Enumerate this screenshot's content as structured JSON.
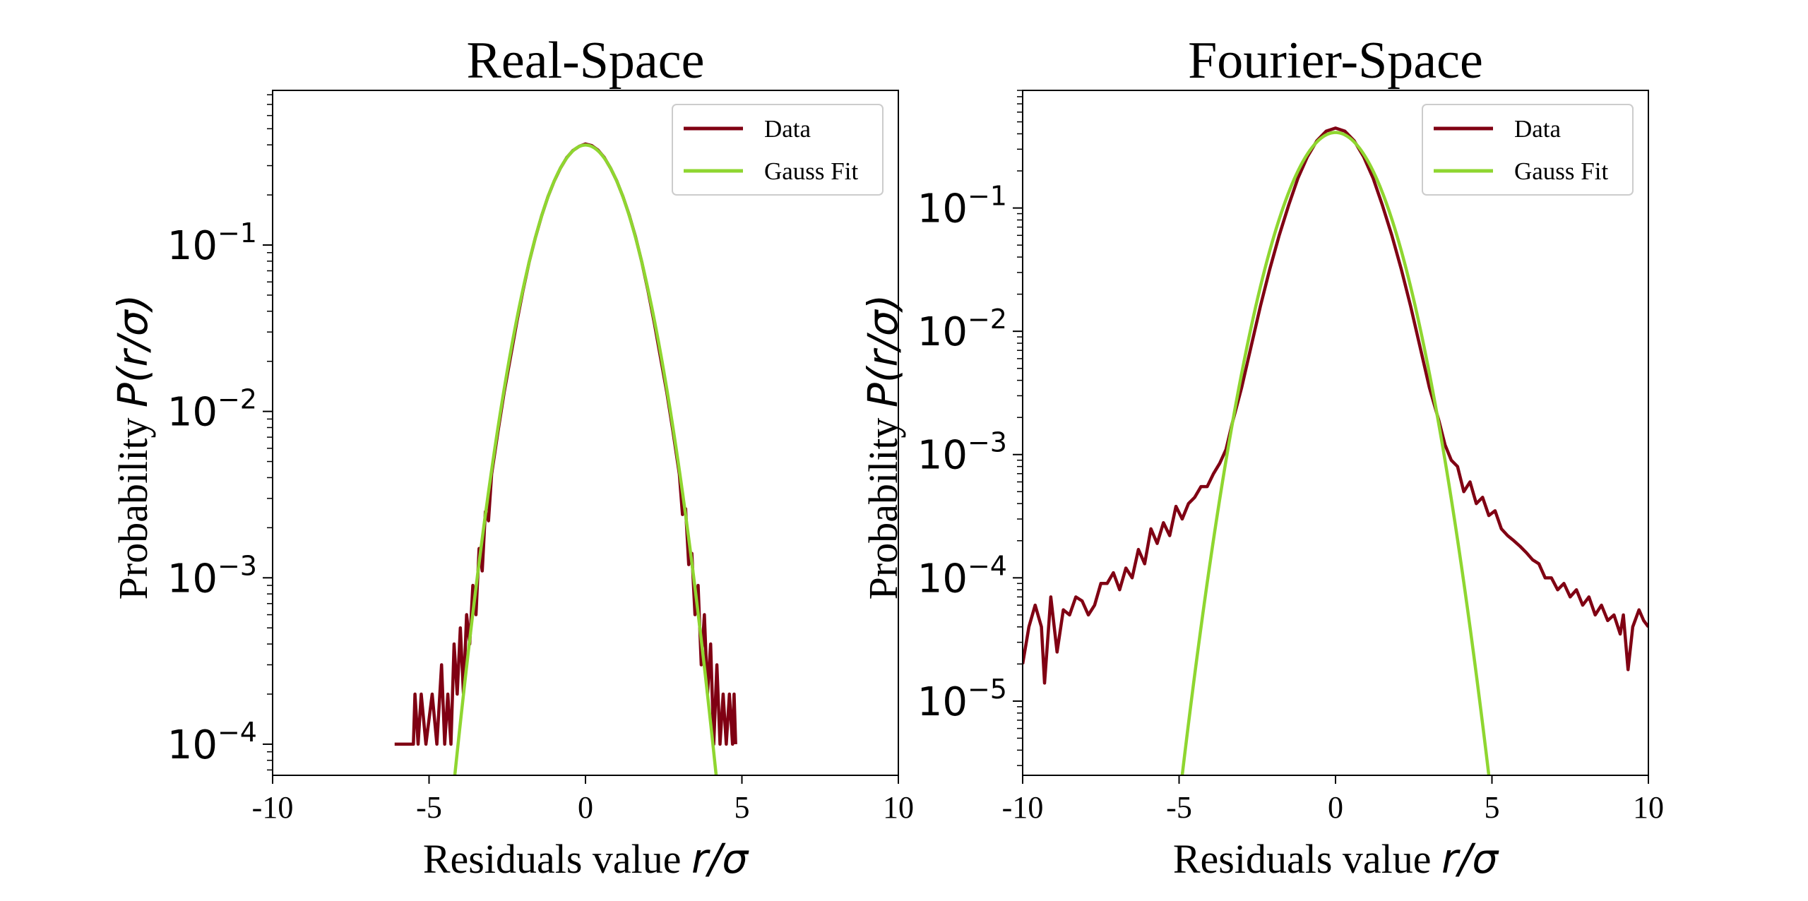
{
  "colors": {
    "data": "#800013",
    "fit": "#8fd630",
    "axes": "#000000",
    "legend_border": "#cccccc"
  },
  "chart_data": [
    {
      "type": "line",
      "title": "Real-Space",
      "xlabel_text": "Residuals value ",
      "xlabel_math": "r/σ",
      "ylabel_text": "Probability ",
      "ylabel_math": "P(r/σ)",
      "xlim": [
        -10,
        10
      ],
      "ylim": [
        6.5e-05,
        0.85
      ],
      "yscale": "log",
      "xticks": [
        -10,
        -5,
        0,
        5,
        10
      ],
      "xtick_labels": [
        "-10",
        "-5",
        "0",
        "5",
        "10"
      ],
      "yticks": [
        {
          "value": 0.1,
          "base": "10",
          "exp": "−1"
        },
        {
          "value": 0.01,
          "base": "10",
          "exp": "−2"
        },
        {
          "value": 0.001,
          "base": "10",
          "exp": "−3"
        },
        {
          "value": 0.0001,
          "base": "10",
          "exp": "−4"
        }
      ],
      "legend": {
        "position": "top-right",
        "entries": [
          "Data",
          "Gauss Fit"
        ]
      },
      "series": [
        {
          "name": "Data",
          "kind": "data",
          "points": [
            [
              -6.1,
              0.0001
            ],
            [
              -6.05,
              0.0001
            ],
            [
              -5.5,
              0.0001
            ],
            [
              -5.45,
              0.0002
            ],
            [
              -5.35,
              0.0001
            ],
            [
              -5.25,
              0.0002
            ],
            [
              -5.1,
              0.0001
            ],
            [
              -4.9,
              0.0002
            ],
            [
              -4.75,
              0.0001
            ],
            [
              -4.6,
              0.0003
            ],
            [
              -4.5,
              0.0001
            ],
            [
              -4.4,
              0.0002
            ],
            [
              -4.3,
              0.0001
            ],
            [
              -4.2,
              0.0004
            ],
            [
              -4.1,
              0.0002
            ],
            [
              -4.0,
              0.0005
            ],
            [
              -3.9,
              0.0002
            ],
            [
              -3.8,
              0.0006
            ],
            [
              -3.7,
              0.0004
            ],
            [
              -3.6,
              0.0009
            ],
            [
              -3.5,
              0.0006
            ],
            [
              -3.4,
              0.0015
            ],
            [
              -3.3,
              0.0011
            ],
            [
              -3.2,
              0.0025
            ],
            [
              -3.1,
              0.0022
            ],
            [
              -3.0,
              0.0042
            ],
            [
              -2.8,
              0.0075
            ],
            [
              -2.6,
              0.013
            ],
            [
              -2.4,
              0.021
            ],
            [
              -2.2,
              0.034
            ],
            [
              -2.0,
              0.053
            ],
            [
              -1.8,
              0.079
            ],
            [
              -1.6,
              0.111
            ],
            [
              -1.4,
              0.15
            ],
            [
              -1.2,
              0.195
            ],
            [
              -1.0,
              0.242
            ],
            [
              -0.8,
              0.29
            ],
            [
              -0.6,
              0.335
            ],
            [
              -0.4,
              0.37
            ],
            [
              -0.2,
              0.392
            ],
            [
              0.0,
              0.405
            ],
            [
              0.2,
              0.396
            ],
            [
              0.4,
              0.372
            ],
            [
              0.6,
              0.336
            ],
            [
              0.8,
              0.29
            ],
            [
              1.0,
              0.243
            ],
            [
              1.2,
              0.195
            ],
            [
              1.4,
              0.151
            ],
            [
              1.6,
              0.112
            ],
            [
              1.8,
              0.079
            ],
            [
              2.0,
              0.053
            ],
            [
              2.2,
              0.034
            ],
            [
              2.4,
              0.021
            ],
            [
              2.6,
              0.013
            ],
            [
              2.8,
              0.0075
            ],
            [
              3.0,
              0.0042
            ],
            [
              3.1,
              0.0024
            ],
            [
              3.2,
              0.0026
            ],
            [
              3.3,
              0.0012
            ],
            [
              3.4,
              0.0014
            ],
            [
              3.5,
              0.0006
            ],
            [
              3.6,
              0.0009
            ],
            [
              3.7,
              0.0003
            ],
            [
              3.8,
              0.0006
            ],
            [
              3.9,
              0.0002
            ],
            [
              4.0,
              0.0004
            ],
            [
              4.1,
              0.0001
            ],
            [
              4.2,
              0.0003
            ],
            [
              4.3,
              0.0001
            ],
            [
              4.4,
              0.0002
            ],
            [
              4.5,
              0.0001
            ],
            [
              4.6,
              0.0002
            ],
            [
              4.7,
              0.0001
            ],
            [
              4.75,
              0.0002
            ],
            [
              4.8,
              0.0001
            ]
          ]
        },
        {
          "name": "Gauss Fit",
          "kind": "fit",
          "amplitude": 0.399,
          "sigma": 1.0
        }
      ]
    },
    {
      "type": "line",
      "title": "Fourier-Space",
      "xlabel_text": "Residuals value ",
      "xlabel_math": "r/σ",
      "ylabel_text": "Probability ",
      "ylabel_math": "P(r/σ)",
      "xlim": [
        -10,
        10
      ],
      "ylim": [
        2.5e-06,
        0.9
      ],
      "yscale": "log",
      "xticks": [
        -10,
        -5,
        0,
        5,
        10
      ],
      "xtick_labels": [
        "-10",
        "-5",
        "0",
        "5",
        "10"
      ],
      "yticks": [
        {
          "value": 0.1,
          "base": "10",
          "exp": "−1"
        },
        {
          "value": 0.01,
          "base": "10",
          "exp": "−2"
        },
        {
          "value": 0.001,
          "base": "10",
          "exp": "−3"
        },
        {
          "value": 0.0001,
          "base": "10",
          "exp": "−4"
        },
        {
          "value": 1e-05,
          "base": "10",
          "exp": "−5"
        }
      ],
      "legend": {
        "position": "top-right",
        "entries": [
          "Data",
          "Gauss Fit"
        ]
      },
      "series": [
        {
          "name": "Data",
          "kind": "data",
          "points": [
            [
              -10.0,
              2e-05
            ],
            [
              -9.8,
              4e-05
            ],
            [
              -9.6,
              6e-05
            ],
            [
              -9.4,
              4e-05
            ],
            [
              -9.3,
              1.4e-05
            ],
            [
              -9.1,
              7e-05
            ],
            [
              -8.9,
              2.5e-05
            ],
            [
              -8.7,
              5.5e-05
            ],
            [
              -8.5,
              5e-05
            ],
            [
              -8.3,
              7e-05
            ],
            [
              -8.1,
              6.5e-05
            ],
            [
              -7.9,
              5e-05
            ],
            [
              -7.7,
              6e-05
            ],
            [
              -7.5,
              9e-05
            ],
            [
              -7.3,
              9e-05
            ],
            [
              -7.1,
              0.00011
            ],
            [
              -6.9,
              8e-05
            ],
            [
              -6.7,
              0.00012
            ],
            [
              -6.5,
              0.0001
            ],
            [
              -6.3,
              0.00017
            ],
            [
              -6.1,
              0.00013
            ],
            [
              -5.9,
              0.00025
            ],
            [
              -5.7,
              0.00019
            ],
            [
              -5.5,
              0.00028
            ],
            [
              -5.3,
              0.00022
            ],
            [
              -5.1,
              0.00038
            ],
            [
              -4.9,
              0.0003
            ],
            [
              -4.7,
              0.0004
            ],
            [
              -4.5,
              0.00045
            ],
            [
              -4.3,
              0.00055
            ],
            [
              -4.1,
              0.00055
            ],
            [
              -3.9,
              0.0007
            ],
            [
              -3.7,
              0.00085
            ],
            [
              -3.5,
              0.0011
            ],
            [
              -3.3,
              0.0018
            ],
            [
              -3.0,
              0.0035
            ],
            [
              -2.7,
              0.0075
            ],
            [
              -2.4,
              0.016
            ],
            [
              -2.1,
              0.032
            ],
            [
              -1.8,
              0.06
            ],
            [
              -1.5,
              0.105
            ],
            [
              -1.2,
              0.175
            ],
            [
              -0.9,
              0.26
            ],
            [
              -0.6,
              0.35
            ],
            [
              -0.3,
              0.42
            ],
            [
              0.0,
              0.445
            ],
            [
              0.3,
              0.42
            ],
            [
              0.6,
              0.35
            ],
            [
              0.9,
              0.26
            ],
            [
              1.2,
              0.175
            ],
            [
              1.5,
              0.105
            ],
            [
              1.8,
              0.06
            ],
            [
              2.1,
              0.032
            ],
            [
              2.4,
              0.016
            ],
            [
              2.7,
              0.0075
            ],
            [
              3.0,
              0.0035
            ],
            [
              3.3,
              0.0019
            ],
            [
              3.5,
              0.0012
            ],
            [
              3.7,
              0.0009
            ],
            [
              3.9,
              0.0008
            ],
            [
              4.1,
              0.0005
            ],
            [
              4.3,
              0.0006
            ],
            [
              4.5,
              0.0004
            ],
            [
              4.7,
              0.00045
            ],
            [
              4.9,
              0.00032
            ],
            [
              5.1,
              0.00035
            ],
            [
              5.3,
              0.00025
            ],
            [
              5.5,
              0.00022
            ],
            [
              5.7,
              0.0002
            ],
            [
              5.9,
              0.00018
            ],
            [
              6.1,
              0.00016
            ],
            [
              6.3,
              0.00014
            ],
            [
              6.5,
              0.00013
            ],
            [
              6.7,
              0.0001
            ],
            [
              6.9,
              0.0001
            ],
            [
              7.1,
              8e-05
            ],
            [
              7.3,
              9e-05
            ],
            [
              7.5,
              7e-05
            ],
            [
              7.7,
              8e-05
            ],
            [
              7.9,
              6e-05
            ],
            [
              8.1,
              7e-05
            ],
            [
              8.3,
              5e-05
            ],
            [
              8.5,
              6e-05
            ],
            [
              8.7,
              4.5e-05
            ],
            [
              8.9,
              5e-05
            ],
            [
              9.1,
              3.5e-05
            ],
            [
              9.2,
              5e-05
            ],
            [
              9.35,
              1.8e-05
            ],
            [
              9.5,
              4e-05
            ],
            [
              9.7,
              5.5e-05
            ],
            [
              9.85,
              4.5e-05
            ],
            [
              10.0,
              4e-05
            ]
          ]
        },
        {
          "name": "Gauss Fit",
          "kind": "fit",
          "amplitude": 0.41,
          "sigma": 1.0
        }
      ]
    }
  ]
}
